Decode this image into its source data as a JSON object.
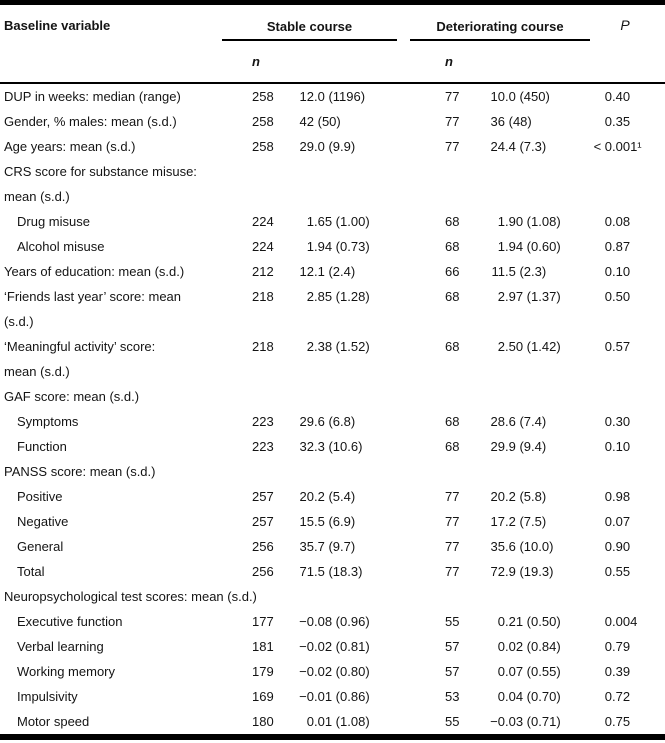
{
  "colors": {
    "text": "#141414",
    "rule": "#000000",
    "background": "#ffffff"
  },
  "table": {
    "title_col": "Baseline variable",
    "group1_header": "Stable course",
    "group2_header": "Deteriorating course",
    "p_header": "P",
    "n_header": "n",
    "rows": [
      {
        "label": "DUP in weeks: median (range)",
        "n1": "258",
        "v1": "12.0 (1196)",
        "n2": "77",
        "v2": "10.0 (450)",
        "p": "0.40"
      },
      {
        "label": "Gender, % males: mean (s.d.)",
        "n1": "258",
        "v1": "42 (50)",
        "n2": "77",
        "v2": "36 (48)",
        "p": "0.35"
      },
      {
        "label": "Age years: mean (s.d.)",
        "n1": "258",
        "v1": "29.0 (9.9)",
        "n2": "77",
        "v2": "24.4 (7.3)",
        "p": "< 0.001¹"
      },
      {
        "label": "CRS score for substance misuse:"
      },
      {
        "label": "mean (s.d.)"
      },
      {
        "label": "Drug misuse",
        "indent": true,
        "n1": "224",
        "v1": "1.65 (1.00)",
        "n2": "68",
        "v2": "1.90 (1.08)",
        "p": "0.08"
      },
      {
        "label": "Alcohol misuse",
        "indent": true,
        "n1": "224",
        "v1": "1.94 (0.73)",
        "n2": "68",
        "v2": "1.94 (0.60)",
        "p": "0.87"
      },
      {
        "label": "Years of education: mean (s.d.)",
        "n1": "212",
        "v1": "12.1 (2.4)",
        "n2": "66",
        "v2": "11.5 (2.3)",
        "p": "0.10"
      },
      {
        "label": "‘Friends last year’ score: mean",
        "n1": "218",
        "v1": "2.85 (1.28)",
        "n2": "68",
        "v2": "2.97 (1.37)",
        "p": "0.50"
      },
      {
        "label": "(s.d.)"
      },
      {
        "label": "‘Meaningful activity’ score:",
        "n1": "218",
        "v1": "2.38 (1.52)",
        "n2": "68",
        "v2": "2.50 (1.42)",
        "p": "0.57"
      },
      {
        "label": "mean (s.d.)"
      },
      {
        "label": "GAF score: mean (s.d.)"
      },
      {
        "label": "Symptoms",
        "indent": true,
        "n1": "223",
        "v1": "29.6 (6.8)",
        "n2": "68",
        "v2": "28.6 (7.4)",
        "p": "0.30"
      },
      {
        "label": "Function",
        "indent": true,
        "n1": "223",
        "v1": "32.3 (10.6)",
        "n2": "68",
        "v2": "29.9 (9.4)",
        "p": "0.10"
      },
      {
        "label": "PANSS score: mean (s.d.)"
      },
      {
        "label": "Positive",
        "indent": true,
        "n1": "257",
        "v1": "20.2 (5.4)",
        "n2": "77",
        "v2": "20.2 (5.8)",
        "p": "0.98"
      },
      {
        "label": "Negative",
        "indent": true,
        "n1": "257",
        "v1": "15.5 (6.9)",
        "n2": "77",
        "v2": "17.2 (7.5)",
        "p": "0.07"
      },
      {
        "label": "General",
        "indent": true,
        "n1": "256",
        "v1": "35.7 (9.7)",
        "n2": "77",
        "v2": "35.6 (10.0)",
        "p": "0.90"
      },
      {
        "label": "Total",
        "indent": true,
        "n1": "256",
        "v1": "71.5 (18.3)",
        "n2": "77",
        "v2": "72.9 (19.3)",
        "p": "0.55"
      },
      {
        "label": "Neuropsychological test scores: mean (s.d.)"
      },
      {
        "label": "Executive function",
        "indent": true,
        "n1": "177",
        "v1": "−0.08 (0.96)",
        "n2": "55",
        "v2": "0.21 (0.50)",
        "p": "0.004"
      },
      {
        "label": "Verbal learning",
        "indent": true,
        "n1": "181",
        "v1": "−0.02 (0.81)",
        "n2": "57",
        "v2": "0.02 (0.84)",
        "p": "0.79"
      },
      {
        "label": "Working memory",
        "indent": true,
        "n1": "179",
        "v1": "−0.02 (0.80)",
        "n2": "57",
        "v2": "0.07 (0.55)",
        "p": "0.39"
      },
      {
        "label": "Impulsivity",
        "indent": true,
        "n1": "169",
        "v1": "−0.01 (0.86)",
        "n2": "53",
        "v2": "0.04 (0.70)",
        "p": "0.72"
      },
      {
        "label": "Motor speed",
        "indent": true,
        "n1": "180",
        "v1": "0.01 (1.08)",
        "n2": "55",
        "v2": "−0.03 (0.71)",
        "p": "0.75"
      }
    ]
  }
}
